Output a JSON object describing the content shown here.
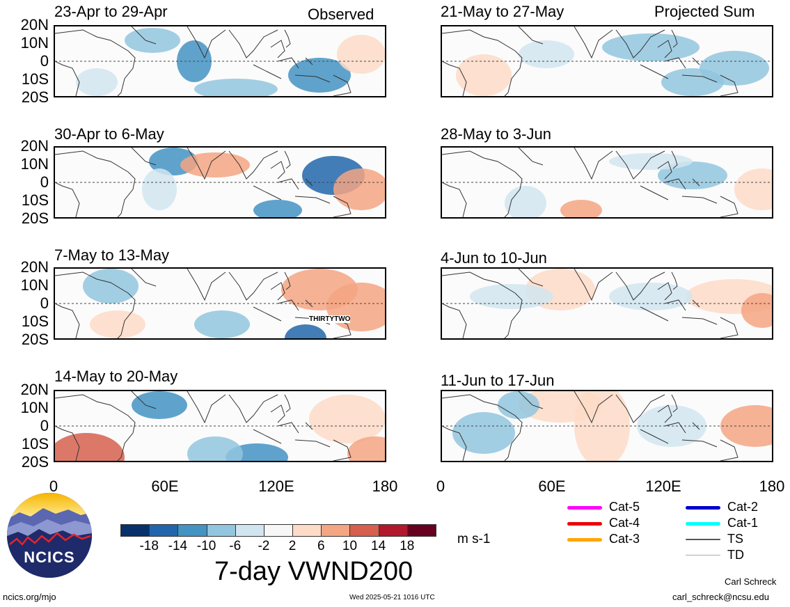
{
  "headers": {
    "observed": "Observed",
    "projected": "Projected Sum"
  },
  "periods_left": [
    "23-Apr to 29-Apr",
    "30-Apr to 6-May",
    "7-May to 13-May",
    "14-May to 20-May"
  ],
  "periods_right": [
    "21-May to 27-May",
    "28-May to 3-Jun",
    "4-Jun to 10-Jun",
    "11-Jun to 17-Jun"
  ],
  "lat_labels": [
    "20N",
    "10N",
    "0",
    "10S",
    "20S"
  ],
  "lon_labels": [
    "0",
    "60E",
    "120E",
    "180"
  ],
  "storm_label": "THIRTYTWO",
  "colorbar": {
    "colors": [
      "#08306b",
      "#2166ac",
      "#4393c3",
      "#92c5de",
      "#d1e5f0",
      "#f7f7f7",
      "#fddbc7",
      "#f4a582",
      "#d6604d",
      "#b2182b",
      "#67001f"
    ],
    "labels": [
      "-18",
      "-14",
      "-10",
      "-6",
      "-2",
      "2",
      "6",
      "10",
      "14",
      "18"
    ],
    "units": "m s-1"
  },
  "title": "7-day VWND200",
  "legend": [
    {
      "label": "Cat-5",
      "color": "#ff00ff"
    },
    {
      "label": "Cat-4",
      "color": "#ee0000"
    },
    {
      "label": "Cat-3",
      "color": "#ffa500"
    },
    {
      "label": "Cat-2",
      "color": "#0000cc"
    },
    {
      "label": "Cat-1",
      "color": "#00ffff"
    },
    {
      "label": "TS",
      "color": "#555555"
    },
    {
      "label": "TD",
      "color": "#aaaaaa"
    }
  ],
  "logo_text": "NCICS",
  "footer": {
    "url": "ncics.org/mjo",
    "timestamp": "Wed 2025-05-21 1016 UTC",
    "author": "Carl Schreck",
    "email": "carl_schreck@ncsu.edu"
  }
}
